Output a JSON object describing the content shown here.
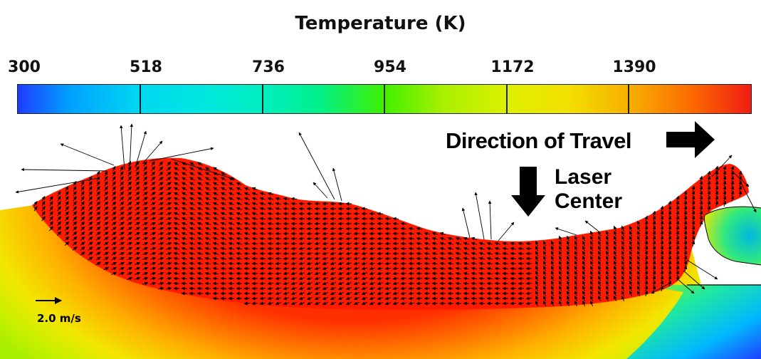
{
  "title": "Temperature (K)",
  "colorbar": {
    "ticks": [
      "300",
      "518",
      "736",
      "954",
      "1172",
      "1390"
    ],
    "colors": [
      "#1f3cff",
      "#00d8f2",
      "#00eec0",
      "#40f000",
      "#dcf000",
      "#f8b000",
      "#f21c14"
    ]
  },
  "annotations": {
    "direction": "Direction of Travel",
    "laser_line1": "Laser",
    "laser_line2": "Center",
    "scale": "2.0 m/s"
  },
  "icons": [
    "right-arrow-icon",
    "down-arrow-icon",
    "scale-arrow-icon"
  ]
}
